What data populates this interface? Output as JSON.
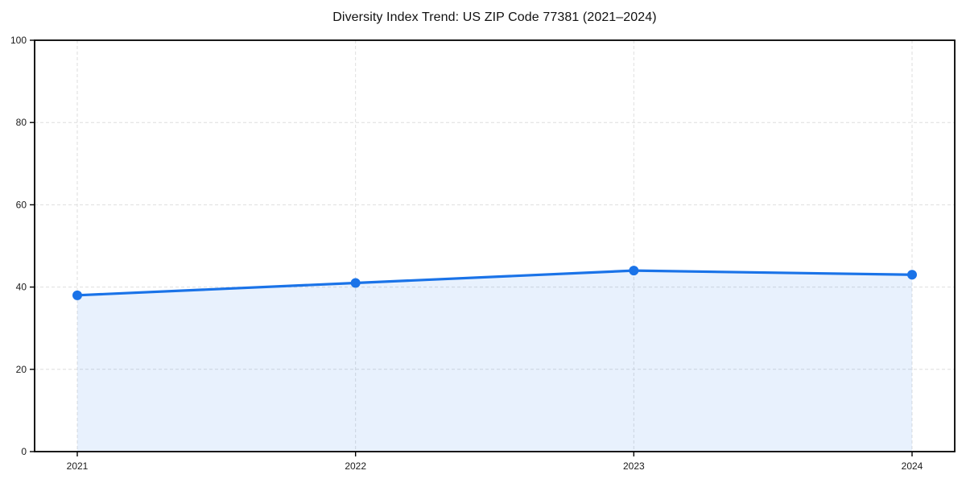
{
  "chart_data": {
    "type": "area",
    "title": "Diversity Index Trend: US ZIP Code 77381 (2021–2024)",
    "x": [
      2021,
      2022,
      2023,
      2024
    ],
    "xticks": [
      "2021",
      "2022",
      "2023",
      "2024"
    ],
    "series": [
      {
        "name": "Diversity Index",
        "values": [
          38,
          41,
          44,
          43
        ]
      }
    ],
    "xlabel": "",
    "ylabel": "",
    "ylim": [
      0,
      100
    ],
    "yticks": [
      0,
      20,
      40,
      60,
      80,
      100
    ],
    "grid": true,
    "legend": false,
    "colors": {
      "line": "#1a73e8",
      "marker": "#1a73e8",
      "fill": "#1a73e8",
      "fill_opacity": 0.1,
      "gridline": "#dedede",
      "frame": "#000000",
      "tick_text": "#1a1a1a"
    }
  }
}
